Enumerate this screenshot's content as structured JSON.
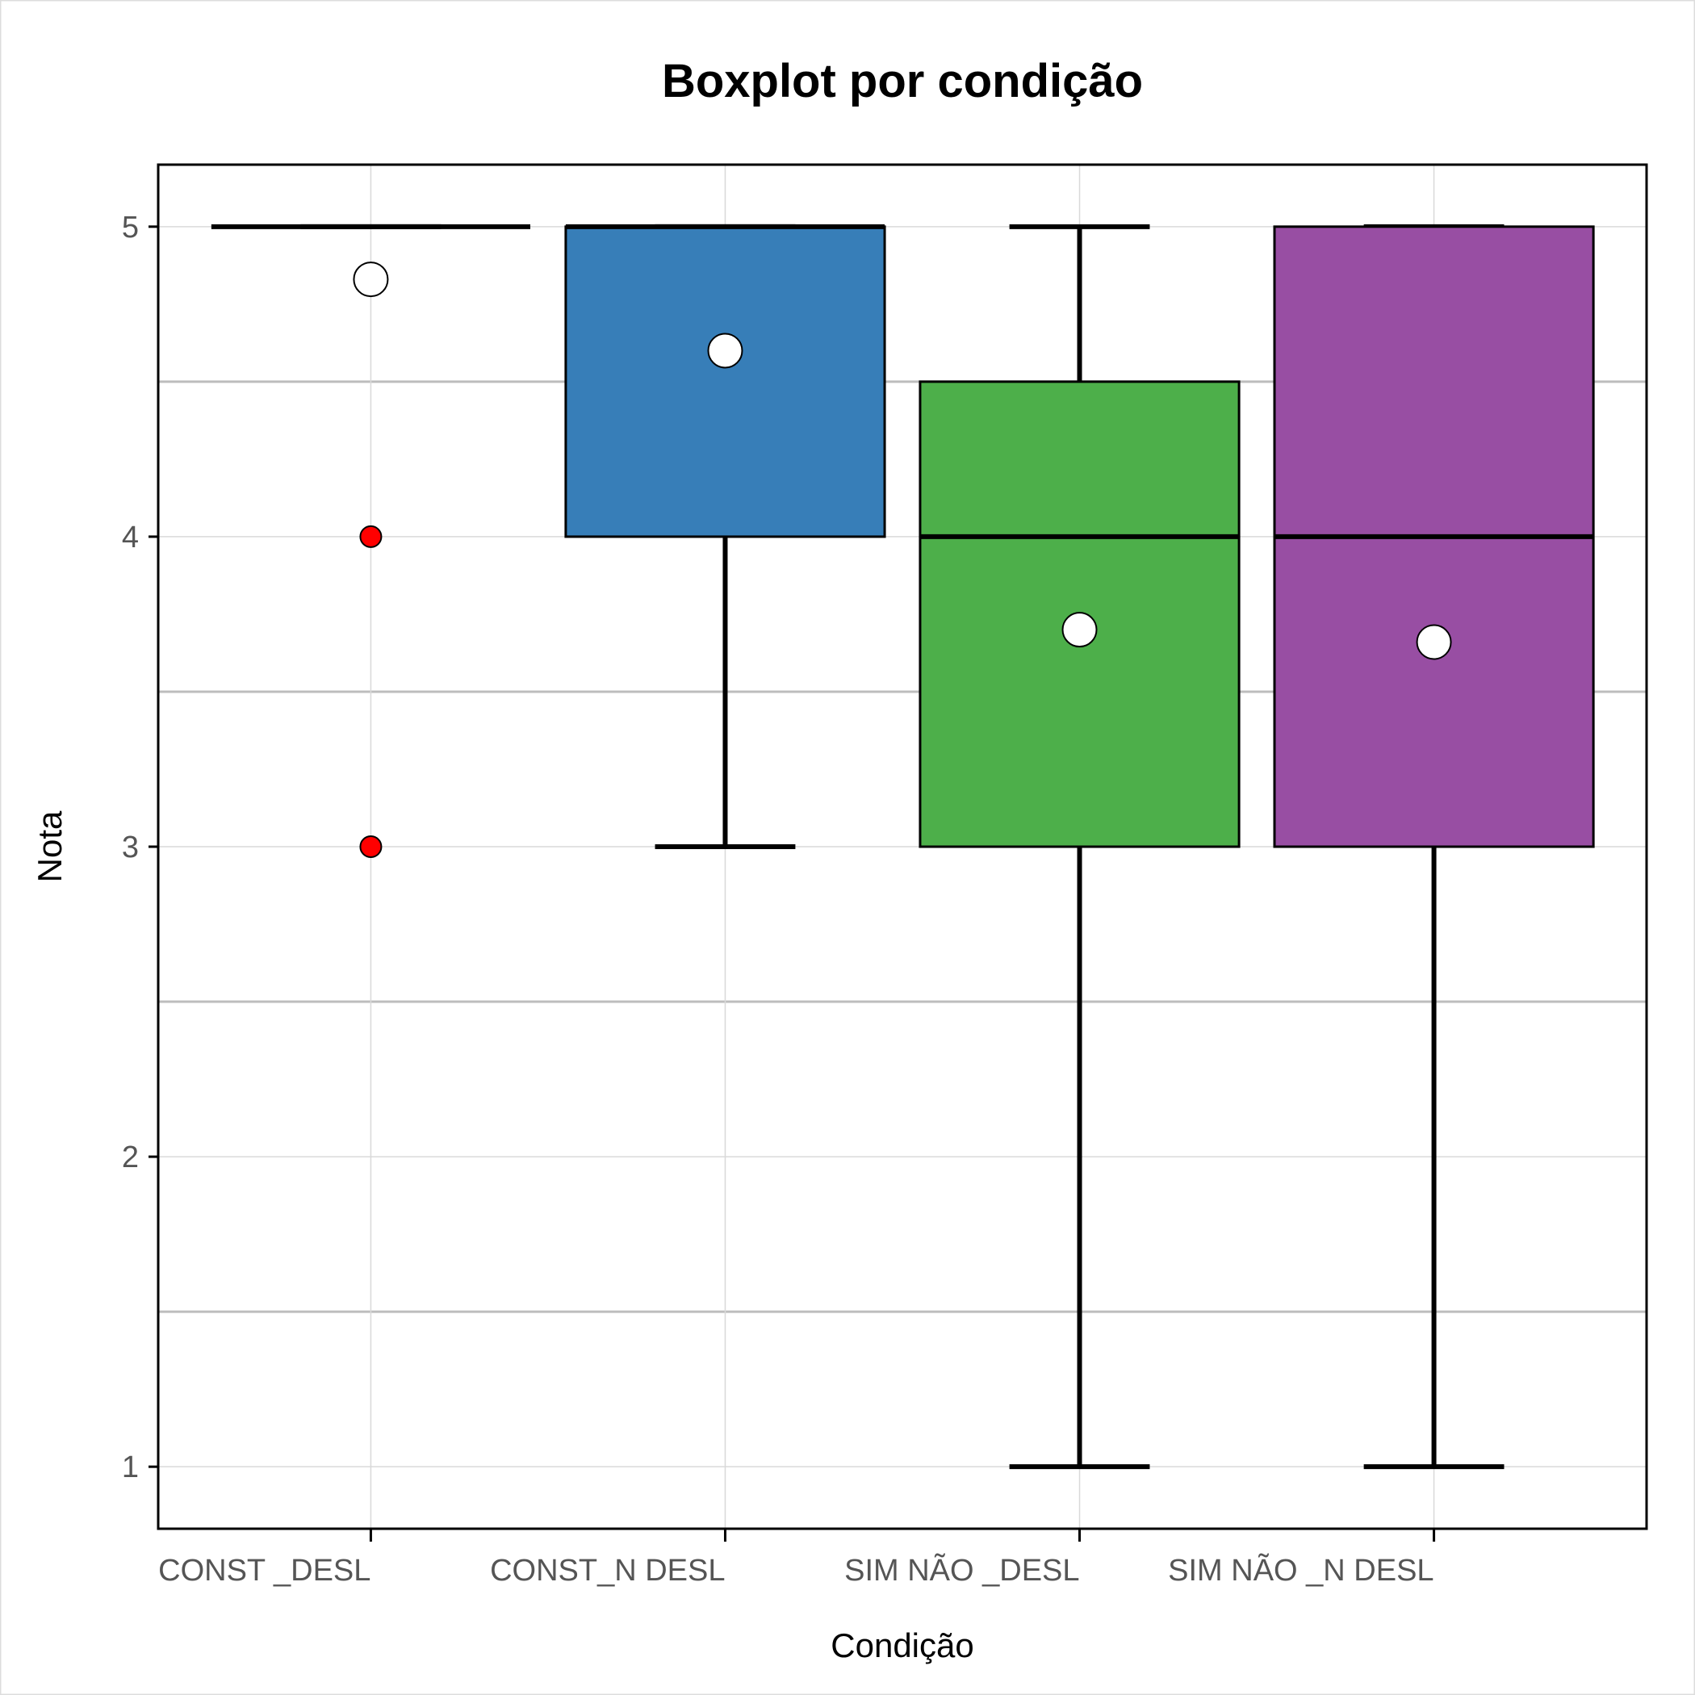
{
  "chart_data": {
    "type": "boxplot",
    "title": "Boxplot por condição",
    "xlabel": "Condição",
    "ylabel": "Nota",
    "ylim": [
      0.8,
      5.2
    ],
    "yticks": [
      1,
      2,
      3,
      4,
      5
    ],
    "grid": true,
    "categories": [
      "CONST _DESL",
      "CONST_N DESL",
      "SIM NÃO _DESL",
      "SIM NÃO _N DESL"
    ],
    "series": [
      {
        "category": "CONST _DESL",
        "fill": "#ffffff",
        "whisker_low": 5,
        "q1": 5,
        "median": 5,
        "q3": 5,
        "whisker_high": 5,
        "mean": 4.83,
        "outliers": [
          4,
          3
        ]
      },
      {
        "category": "CONST_N DESL",
        "fill": "#377eb8",
        "whisker_low": 3,
        "q1": 4,
        "median": 5,
        "q3": 5,
        "whisker_high": 5,
        "mean": 4.6,
        "outliers": []
      },
      {
        "category": "SIM NÃO _DESL",
        "fill": "#4daf4a",
        "whisker_low": 1,
        "q1": 3,
        "median": 4,
        "q3": 4.5,
        "whisker_high": 5,
        "mean": 3.7,
        "outliers": []
      },
      {
        "category": "SIM NÃO _N DESL",
        "fill": "#984ea3",
        "whisker_low": 1,
        "q1": 3,
        "median": 4,
        "q3": 5,
        "whisker_high": 5,
        "mean": 3.66,
        "outliers": []
      }
    ],
    "outlier_color": "#ff0000",
    "mean_marker_color": "#ffffff"
  }
}
